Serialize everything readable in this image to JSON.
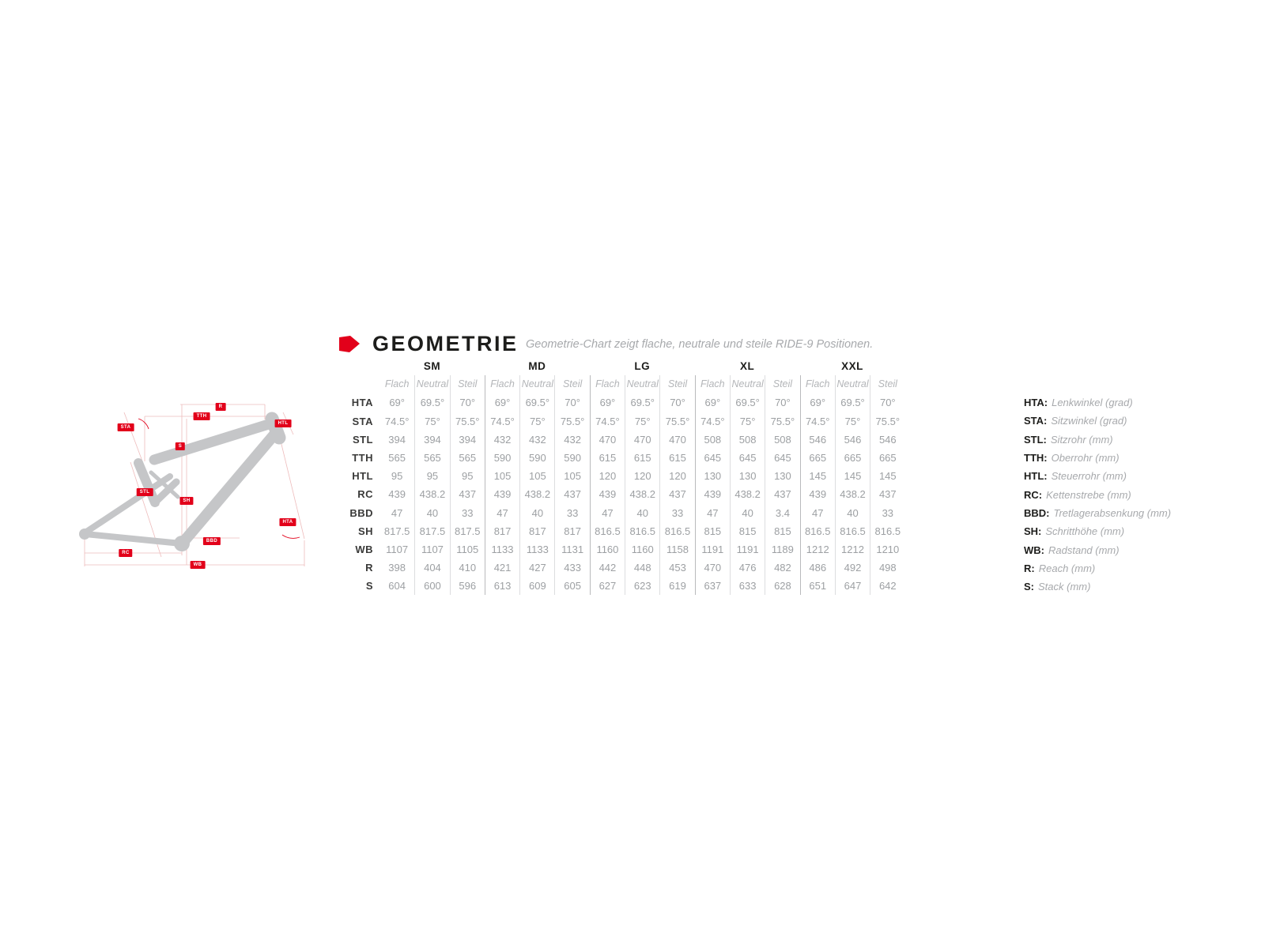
{
  "header": {
    "title": "GEOMETRIE",
    "subtitle": "Geometrie-Chart zeigt flache, neutrale und steile RIDE-9 Positionen.",
    "accent_color": "#e2001a"
  },
  "diagram": {
    "frame_color": "#c5c6c8",
    "label_color": "#e2001a",
    "labels": {
      "r": "R",
      "tth": "TTH",
      "sta": "STA",
      "htl": "HTL",
      "s": "S",
      "stl": "STL",
      "sh": "SH",
      "hta": "HTA",
      "bbd": "BBD",
      "rc": "RC",
      "wb": "WB"
    }
  },
  "chart_data": {
    "type": "table",
    "title": "GEOMETRIE",
    "subtitle": "Geometrie-Chart zeigt flache, neutrale und steile RIDE-9 Positionen.",
    "sizes": [
      "SM",
      "MD",
      "LG",
      "XL",
      "XXL"
    ],
    "ride9_positions": [
      "Flach",
      "Neutral",
      "Steil"
    ],
    "rows": [
      {
        "label": "HTA",
        "values": [
          "69°",
          "69.5°",
          "70°",
          "69°",
          "69.5°",
          "70°",
          "69°",
          "69.5°",
          "70°",
          "69°",
          "69.5°",
          "70°",
          "69°",
          "69.5°",
          "70°"
        ]
      },
      {
        "label": "STA",
        "values": [
          "74.5°",
          "75°",
          "75.5°",
          "74.5°",
          "75°",
          "75.5°",
          "74.5°",
          "75°",
          "75.5°",
          "74.5°",
          "75°",
          "75.5°",
          "74.5°",
          "75°",
          "75.5°"
        ]
      },
      {
        "label": "STL",
        "values": [
          "394",
          "394",
          "394",
          "432",
          "432",
          "432",
          "470",
          "470",
          "470",
          "508",
          "508",
          "508",
          "546",
          "546",
          "546"
        ]
      },
      {
        "label": "TTH",
        "values": [
          "565",
          "565",
          "565",
          "590",
          "590",
          "590",
          "615",
          "615",
          "615",
          "645",
          "645",
          "645",
          "665",
          "665",
          "665"
        ]
      },
      {
        "label": "HTL",
        "values": [
          "95",
          "95",
          "95",
          "105",
          "105",
          "105",
          "120",
          "120",
          "120",
          "130",
          "130",
          "130",
          "145",
          "145",
          "145"
        ]
      },
      {
        "label": "RC",
        "values": [
          "439",
          "438.2",
          "437",
          "439",
          "438.2",
          "437",
          "439",
          "438.2",
          "437",
          "439",
          "438.2",
          "437",
          "439",
          "438.2",
          "437"
        ]
      },
      {
        "label": "BBD",
        "values": [
          "47",
          "40",
          "33",
          "47",
          "40",
          "33",
          "47",
          "40",
          "33",
          "47",
          "40",
          "3.4",
          "47",
          "40",
          "33"
        ]
      },
      {
        "label": "SH",
        "values": [
          "817.5",
          "817.5",
          "817.5",
          "817",
          "817",
          "817",
          "816.5",
          "816.5",
          "816.5",
          "815",
          "815",
          "815",
          "816.5",
          "816.5",
          "816.5"
        ]
      },
      {
        "label": "WB",
        "values": [
          "1107",
          "1107",
          "1105",
          "1133",
          "1133",
          "1131",
          "1160",
          "1160",
          "1158",
          "1191",
          "1191",
          "1189",
          "1212",
          "1212",
          "1210"
        ]
      },
      {
        "label": "R",
        "values": [
          "398",
          "404",
          "410",
          "421",
          "427",
          "433",
          "442",
          "448",
          "453",
          "470",
          "476",
          "482",
          "486",
          "492",
          "498"
        ]
      },
      {
        "label": "S",
        "values": [
          "604",
          "600",
          "596",
          "613",
          "609",
          "605",
          "627",
          "623",
          "619",
          "637",
          "633",
          "628",
          "651",
          "647",
          "642"
        ]
      }
    ]
  },
  "legend": {
    "items": [
      {
        "abbr": "HTA:",
        "desc": "Lenkwinkel (grad)"
      },
      {
        "abbr": "STA:",
        "desc": "Sitzwinkel (grad)"
      },
      {
        "abbr": "STL:",
        "desc": "Sitzrohr (mm)"
      },
      {
        "abbr": "TTH:",
        "desc": "Oberrohr (mm)"
      },
      {
        "abbr": "HTL:",
        "desc": "Steuerrohr (mm)"
      },
      {
        "abbr": "RC:",
        "desc": "Kettenstrebe (mm)"
      },
      {
        "abbr": "BBD:",
        "desc": "Tretlagerabsenkung (mm)"
      },
      {
        "abbr": "SH:",
        "desc": "Schritthöhe (mm)"
      },
      {
        "abbr": "WB:",
        "desc": "Radstand (mm)"
      },
      {
        "abbr": "R:",
        "desc": "Reach (mm)"
      },
      {
        "abbr": "S:",
        "desc": "Stack (mm)"
      }
    ]
  }
}
